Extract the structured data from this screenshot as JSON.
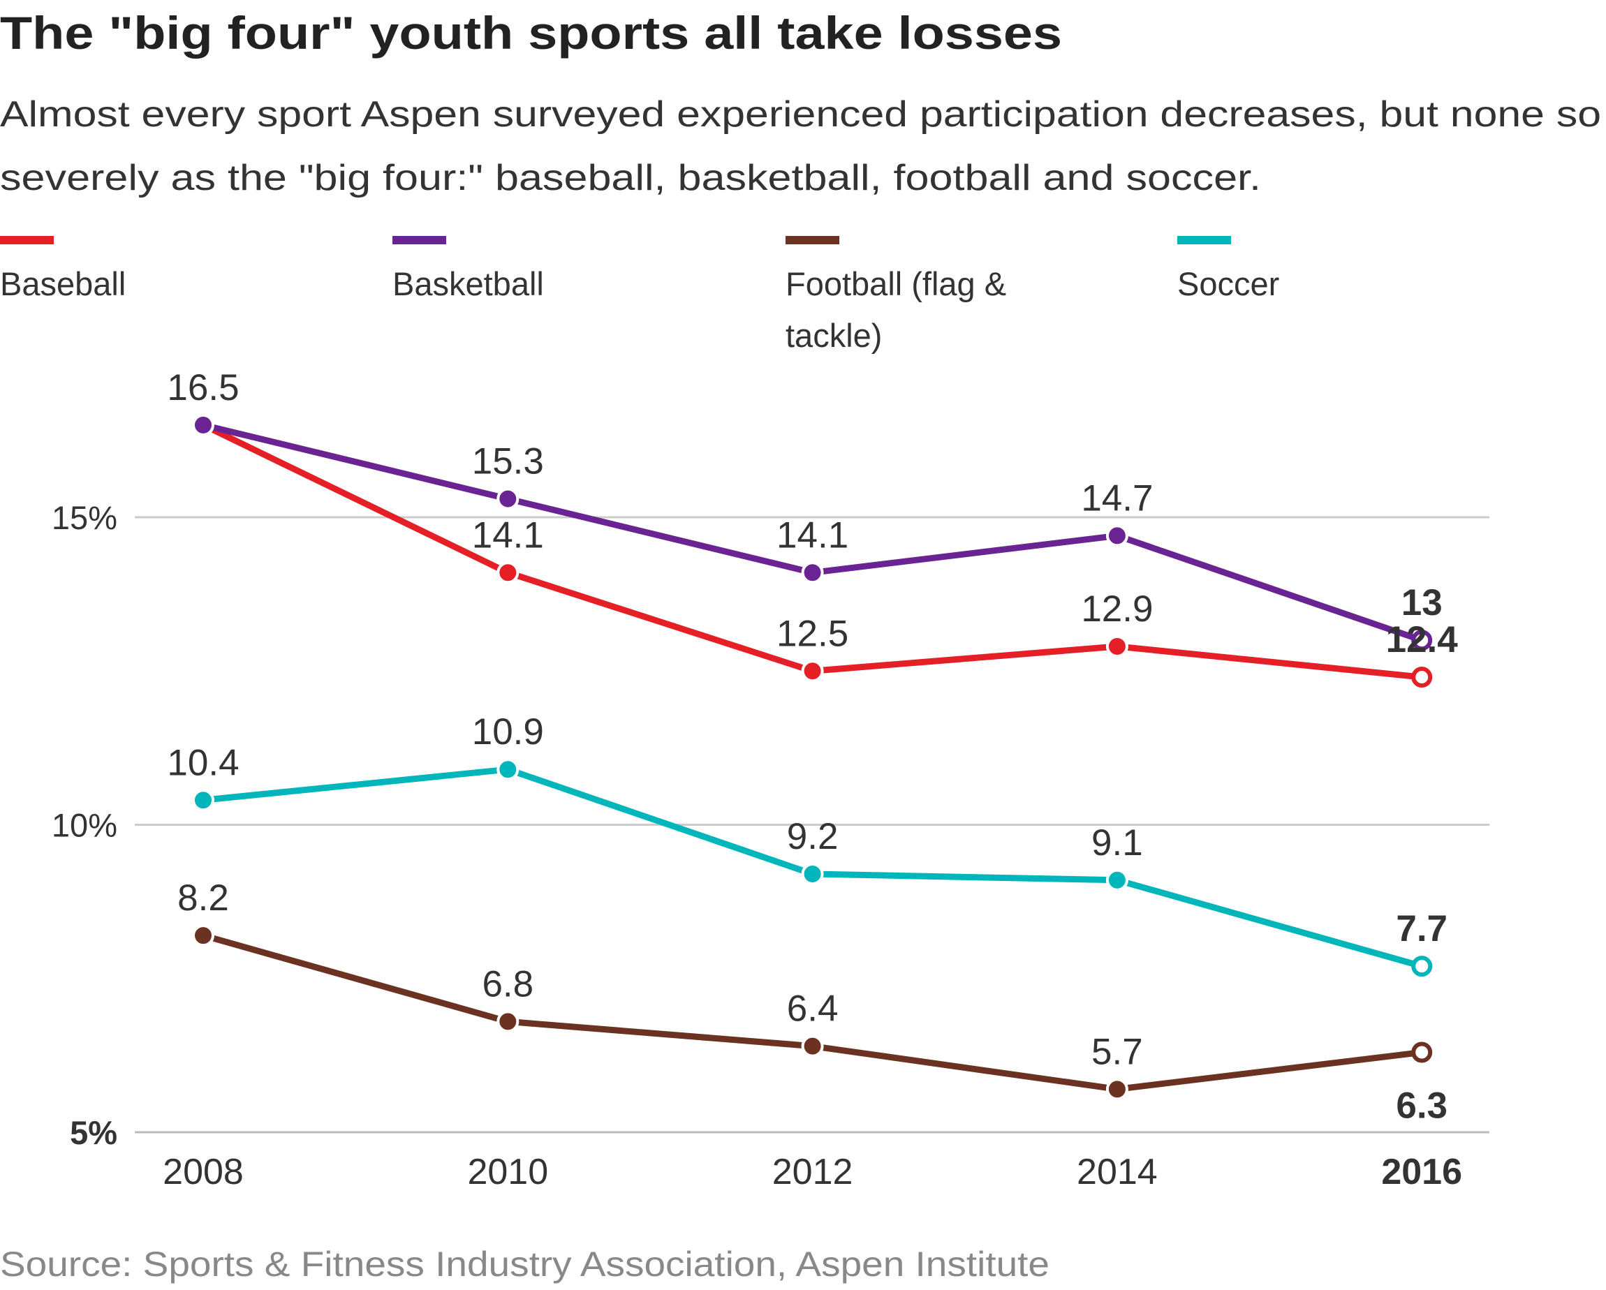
{
  "title": "The \"big four\" youth sports all take losses",
  "subtitle_lines": [
    "Almost every sport Aspen surveyed experienced participation decreases, but none so",
    "severely as the \"big four:\" baseball, basketball, football and soccer."
  ],
  "source": "Source: Sports & Fitness Industry Association, Aspen Institute",
  "chart_data": {
    "type": "line",
    "title": "The \"big four\" youth sports all take losses",
    "x": [
      "2008",
      "2010",
      "2012",
      "2014",
      "2016"
    ],
    "ylim": [
      5,
      17
    ],
    "yticks": [
      {
        "value": 5,
        "label": "5%"
      },
      {
        "value": 10,
        "label": "10%"
      },
      {
        "value": 15,
        "label": "15%"
      }
    ],
    "grid": true,
    "legend_placement": "top",
    "series": [
      {
        "name": "Baseball",
        "color": "#e41f26",
        "values": [
          16.5,
          14.1,
          12.5,
          12.9,
          12.4
        ],
        "labels": [
          null,
          "14.1",
          "12.5",
          "12.9",
          "12.4"
        ]
      },
      {
        "name": "Basketball",
        "color": "#6a2392",
        "values": [
          16.5,
          15.3,
          14.1,
          14.7,
          13
        ],
        "labels": [
          "16.5",
          "15.3",
          "14.1",
          "14.7",
          "13"
        ]
      },
      {
        "name": "Football (flag & tackle)",
        "legend_lines": [
          "Football (flag &",
          "tackle)"
        ],
        "color": "#6b3222",
        "values": [
          8.2,
          6.8,
          6.4,
          5.7,
          6.3
        ],
        "labels": [
          "8.2",
          "6.8",
          "6.4",
          "5.7",
          "6.3"
        ],
        "last_label_below": true
      },
      {
        "name": "Soccer",
        "color": "#00b6ba",
        "values": [
          10.4,
          10.9,
          9.2,
          9.1,
          7.7
        ],
        "labels": [
          "10.4",
          "10.9",
          "9.2",
          "9.1",
          "7.7"
        ]
      }
    ]
  }
}
